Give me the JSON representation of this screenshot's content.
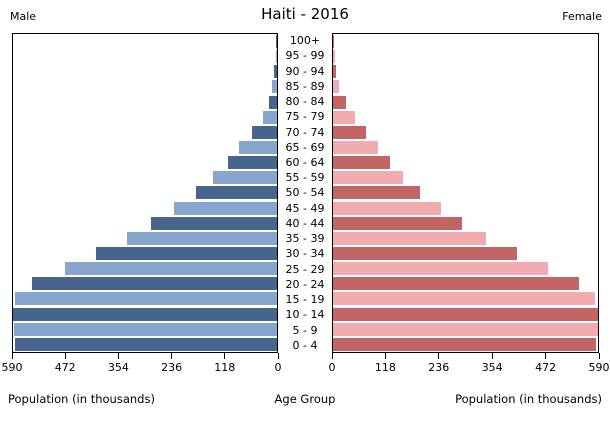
{
  "header": {
    "male_label": "Male",
    "title": "Haiti - 2016",
    "female_label": "Female"
  },
  "footer": {
    "left_axis_label": "Population (in thousands)",
    "center_axis_label": "Age Group",
    "right_axis_label": "Population (in thousands)"
  },
  "axes": {
    "left_tick_labels": [
      "590",
      "472",
      "354",
      "236",
      "118",
      "0"
    ],
    "right_tick_labels": [
      "0",
      "118",
      "236",
      "354",
      "472",
      "590"
    ]
  },
  "chart_data": {
    "type": "bar",
    "subtype": "population-pyramid",
    "title": "Haiti - 2016",
    "unit": "thousands",
    "xlabel_left": "Population (in thousands)",
    "xlabel_right": "Population (in thousands)",
    "ylabel": "Age Group",
    "xlim": [
      0,
      590
    ],
    "x_ticks": [
      0,
      118,
      236,
      354,
      472,
      590
    ],
    "grid": false,
    "age_groups": [
      "100+",
      "95 - 99",
      "90 - 94",
      "85 - 89",
      "80 - 84",
      "75 - 79",
      "70 - 74",
      "65 - 69",
      "60 - 64",
      "55 - 59",
      "50 - 54",
      "45 - 49",
      "40 - 44",
      "35 - 39",
      "30 - 34",
      "25 - 29",
      "20 - 24",
      "15 - 19",
      "10 - 14",
      "5 - 9",
      "0 - 4"
    ],
    "series": [
      {
        "name": "Male",
        "side": "left",
        "values": [
          1,
          3,
          6,
          11,
          18,
          31,
          57,
          86,
          109,
          143,
          181,
          231,
          282,
          336,
          405,
          474,
          548,
          585,
          590,
          587,
          585
        ]
      },
      {
        "name": "Female",
        "side": "right",
        "values": [
          2,
          4,
          6,
          13,
          28,
          48,
          74,
          101,
          126,
          156,
          193,
          240,
          288,
          341,
          410,
          479,
          547,
          584,
          590,
          590,
          586
        ]
      }
    ],
    "colors": {
      "male_dark": "#46648c",
      "male_light": "#87a5cd",
      "female_dark": "#c36465",
      "female_light": "#f2acaf",
      "axis": "#000000",
      "background": "#ffffff"
    }
  }
}
